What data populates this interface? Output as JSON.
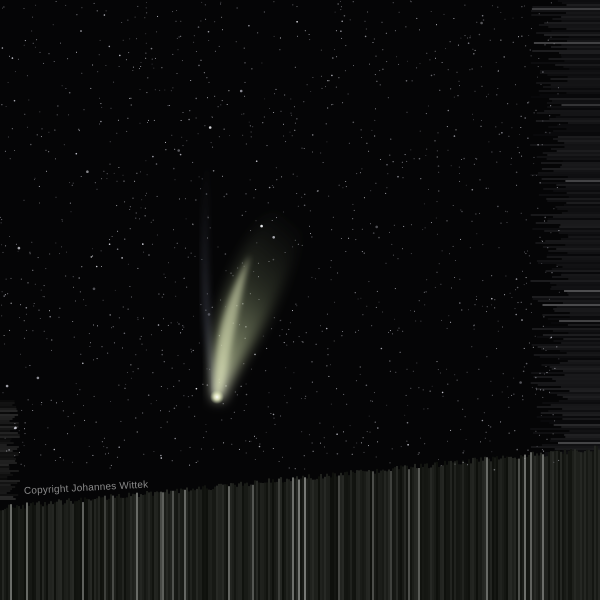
{
  "photo": {
    "subject": "comet-with-tail-in-starfield",
    "copyright": "Copyright Johannes Wittek",
    "colors": {
      "sky": "#050506",
      "comet_tail": "#b8c89a",
      "comet_nucleus": "#f4f6dc",
      "ion_tail": "#8a92a8",
      "streak_band": "#1a1c18"
    }
  }
}
